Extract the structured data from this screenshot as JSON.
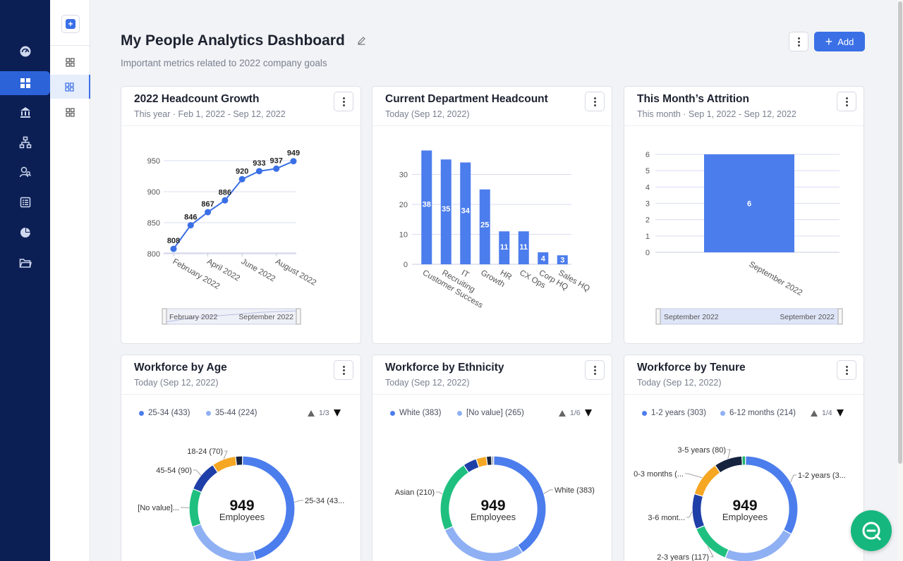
{
  "page": {
    "title": "My People Analytics Dashboard",
    "subtitle": "Important metrics related to 2022 company goals",
    "add_label": "Add"
  },
  "icons": {
    "rail": [
      "dashboard-gauge-icon",
      "grid-icon",
      "bank-icon",
      "org-chart-icon",
      "people-search-icon",
      "list-icon",
      "pie-chart-icon",
      "folder-icon"
    ],
    "subnav": [
      "new-dashboard-icon",
      "grid-icon",
      "grid-icon",
      "grid-icon"
    ],
    "chat": "chat-icon"
  },
  "colors": {
    "accent": "#3a6fe6",
    "light_blue": "#8fb0f3",
    "green": "#1fc07f",
    "navy": "#1f3fa8",
    "orange": "#f5a623",
    "dark": "#15233f",
    "rail_bg": "#0c1f55",
    "chat": "#16b77e"
  },
  "cards": {
    "headcount": {
      "title": "2022 Headcount Growth",
      "subtitle": "This year · Feb 1, 2022 - Sep 12, 2022",
      "range_start": "February 2022",
      "range_end": "September 2022"
    },
    "department": {
      "title": "Current Department Headcount",
      "subtitle": "Today (Sep 12, 2022)"
    },
    "attrition": {
      "title": "This Month’s Attrition",
      "subtitle": "This month · Sep 1, 2022 - Sep 12, 2022",
      "range_start": "September 2022",
      "range_end": "September 2022"
    },
    "age": {
      "title": "Workforce by Age",
      "subtitle": "Today (Sep 12, 2022)",
      "legend": [
        "25-34 (433)",
        "35-44 (224)"
      ],
      "page": "1/3",
      "center_value": "949",
      "center_label": "Employees"
    },
    "ethnicity": {
      "title": "Workforce by Ethnicity",
      "subtitle": "Today (Sep 12, 2022)",
      "legend": [
        "White (383)",
        "[No value] (265)"
      ],
      "page": "1/6",
      "center_value": "949",
      "center_label": "Employees"
    },
    "tenure": {
      "title": "Workforce by Tenure",
      "subtitle": "Today (Sep 12, 2022)",
      "legend": [
        "1-2 years (303)",
        "6-12 months (214)"
      ],
      "page": "1/4",
      "center_value": "949",
      "center_label": "Employees"
    }
  },
  "chart_data": [
    {
      "id": "headcount",
      "type": "line",
      "x": [
        "February 2022",
        "March 2022",
        "April 2022",
        "May 2022",
        "June 2022",
        "July 2022",
        "August 2022",
        "September 2022"
      ],
      "x_tick_labels": [
        "February 2022",
        "April 2022",
        "June 2022",
        "August 2022"
      ],
      "values": [
        808,
        846,
        867,
        886,
        920,
        933,
        937,
        949
      ],
      "yticks": [
        800,
        850,
        900,
        950
      ],
      "ylim": [
        790,
        960
      ],
      "grid": true
    },
    {
      "id": "department",
      "type": "bar",
      "categories": [
        "Customer Success",
        "Recruiting",
        "IT",
        "Growth",
        "HR",
        "CX Ops",
        "Corp HQ",
        "Sales HQ"
      ],
      "values": [
        38,
        35,
        34,
        25,
        11,
        11,
        4,
        3
      ],
      "yticks": [
        0,
        10,
        20,
        30
      ],
      "ylim": [
        0,
        40
      ],
      "grid": true
    },
    {
      "id": "attrition",
      "type": "bar",
      "categories": [
        "September 2022"
      ],
      "values": [
        6
      ],
      "yticks": [
        0,
        1,
        2,
        3,
        4,
        5,
        6
      ],
      "ylim": [
        0,
        6.5
      ],
      "grid": true
    },
    {
      "id": "age",
      "type": "pie",
      "total": 949,
      "slices": [
        {
          "label": "25-34 (43...",
          "value": 433,
          "color": "#4c7ded"
        },
        {
          "label": "35-44 (224)",
          "value": 224,
          "color": "#8fb0f3"
        },
        {
          "label": "[No value]...",
          "value": 112,
          "color": "#1fc07f"
        },
        {
          "label": "45-54 (90)",
          "value": 90,
          "color": "#1f3fa8"
        },
        {
          "label": "18-24 (70)",
          "value": 70,
          "color": "#f5a623"
        },
        {
          "label": "",
          "value": 20,
          "color": "#15233f"
        }
      ],
      "shown_labels": [
        "18-24 (70)",
        "45-54 (90)",
        "[No value]...",
        "25-34 (43..."
      ]
    },
    {
      "id": "ethnicity",
      "type": "pie",
      "total": 949,
      "slices": [
        {
          "label": "White (383)",
          "value": 383,
          "color": "#4c7ded"
        },
        {
          "label": "[No value] (265)",
          "value": 265,
          "color": "#8fb0f3"
        },
        {
          "label": "Asian (210)",
          "value": 210,
          "color": "#1fc07f"
        },
        {
          "label": "",
          "value": 40,
          "color": "#1f3fa8"
        },
        {
          "label": "",
          "value": 30,
          "color": "#f5a623"
        },
        {
          "label": "",
          "value": 15,
          "color": "#15233f"
        },
        {
          "label": "",
          "value": 6,
          "color": "#9aa3b5"
        }
      ],
      "shown_labels": [
        "White (383)",
        "Asian (210)"
      ]
    },
    {
      "id": "tenure",
      "type": "pie",
      "total": 949,
      "slices": [
        {
          "label": "1-2 years (3...",
          "value": 303,
          "color": "#4c7ded"
        },
        {
          "label": "6-12 months (214)",
          "value": 214,
          "color": "#8fb0f3"
        },
        {
          "label": "2-3 years (117)",
          "value": 117,
          "color": "#1fc07f"
        },
        {
          "label": "3-6 mont...",
          "value": 100,
          "color": "#1f3fa8"
        },
        {
          "label": "0-3 months (...",
          "value": 100,
          "color": "#f5a623"
        },
        {
          "label": "3-5 years (80)",
          "value": 80,
          "color": "#15233f"
        },
        {
          "label": "",
          "value": 10,
          "color": "#1fb36b"
        }
      ],
      "shown_labels": [
        "3-5 years (80)",
        "1-2 years (3...",
        "0-3 months (...",
        "3-6 mont...",
        "2-3 years (117)"
      ]
    }
  ]
}
